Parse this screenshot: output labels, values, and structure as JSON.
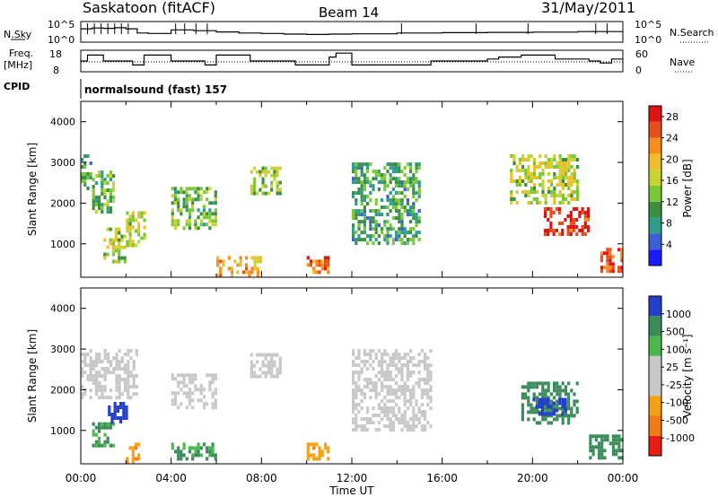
{
  "header": {
    "station": "Saskatoon (fitACF)",
    "beam": "Beam 14",
    "date": "31/May/2011"
  },
  "strips": {
    "nsky_label": "N.Sky",
    "nsky_tick_hi": "10^5",
    "nsky_tick_lo": "10^0",
    "nsearch_label": "N.Search",
    "nsearch_tick_hi": "10^5",
    "nsearch_tick_lo": "10^0",
    "freq_label_1": "Freq.",
    "freq_label_2": "[MHz]",
    "freq_tick_hi": "18",
    "freq_tick_lo": "8",
    "nave_label": "Nave",
    "nave_tick_hi": "60",
    "nave_tick_lo": "0",
    "cpid_label": "CPID",
    "cpid_value": "normalsound (fast) 157"
  },
  "chart_data": [
    {
      "type": "line",
      "panel": "nsky",
      "x_unit": "hours UT",
      "xlim": [
        0,
        24
      ],
      "y_scale": "log",
      "ylim": [
        1,
        100000
      ],
      "x": [
        0,
        0.5,
        1,
        1.5,
        2,
        2.5,
        3,
        4,
        5,
        6,
        7,
        8,
        9,
        10,
        11,
        12,
        14,
        16,
        18,
        20,
        22,
        24
      ],
      "values": [
        3000,
        5000,
        4000,
        6000,
        3000,
        200,
        150,
        1500,
        900,
        400,
        200,
        150,
        100,
        80,
        100,
        120,
        200,
        250,
        300,
        350,
        500,
        600
      ]
    },
    {
      "type": "line",
      "panel": "frequency",
      "x_unit": "hours UT",
      "ylabel": "Freq. [MHz]",
      "xlim": [
        0,
        24
      ],
      "ylim": [
        8,
        18
      ],
      "x": [
        0,
        0.3,
        1,
        2,
        2.3,
        2.8,
        4,
        5,
        5.5,
        6,
        7.5,
        9,
        9.5,
        10.5,
        11,
        11.3,
        12,
        15,
        15.5,
        16,
        18,
        18.5,
        19.5,
        21,
        22.5,
        23,
        23.5,
        24
      ],
      "values": [
        13,
        16,
        13,
        13,
        11,
        16,
        13,
        13,
        11,
        16,
        13,
        13,
        11,
        11,
        15,
        17,
        11,
        11,
        13,
        13,
        14,
        15,
        16,
        14,
        13,
        12,
        14,
        14
      ]
    },
    {
      "type": "heatmap",
      "panel": "power",
      "xlabel": "Time UT",
      "ylabel": "Slant Range [km]",
      "xlim": [
        0,
        24
      ],
      "ylim": [
        180,
        4500
      ],
      "x_ticks": [
        "00:00",
        "04:00",
        "08:00",
        "12:00",
        "16:00",
        "20:00",
        "00:00"
      ],
      "y_ticks": [
        1000,
        2000,
        3000,
        4000
      ],
      "colorbar": {
        "label": "Power [dB]",
        "ticks": [
          4,
          8,
          12,
          16,
          20,
          24,
          28
        ],
        "colors": [
          "#1a1aff",
          "#3c5fd6",
          "#2f9c8c",
          "#3a9040",
          "#7bc837",
          "#c8d232",
          "#f0be28",
          "#f58c1e",
          "#e6501e",
          "#dc1414"
        ]
      },
      "regions": [
        {
          "t": [
            0.0,
            0.5
          ],
          "r": [
            2400,
            3200
          ],
          "value": 10
        },
        {
          "t": [
            0.5,
            1.5
          ],
          "r": [
            1800,
            2800
          ],
          "value": 12
        },
        {
          "t": [
            1.0,
            2.0
          ],
          "r": [
            600,
            1400
          ],
          "value": 14
        },
        {
          "t": [
            2.0,
            2.8
          ],
          "r": [
            1000,
            1800
          ],
          "value": 16
        },
        {
          "t": [
            4.0,
            6.0
          ],
          "r": [
            1400,
            2400
          ],
          "value": 12
        },
        {
          "t": [
            6.0,
            8.0
          ],
          "r": [
            200,
            700
          ],
          "value": 20
        },
        {
          "t": [
            7.5,
            8.8
          ],
          "r": [
            2200,
            2900
          ],
          "value": 14
        },
        {
          "t": [
            10.0,
            11.0
          ],
          "r": [
            300,
            700
          ],
          "value": 24
        },
        {
          "t": [
            12.0,
            15.0
          ],
          "r": [
            1000,
            3000
          ],
          "value": 10
        },
        {
          "t": [
            19.0,
            22.0
          ],
          "r": [
            2000,
            3200
          ],
          "value": 16
        },
        {
          "t": [
            20.5,
            22.5
          ],
          "r": [
            1200,
            1900
          ],
          "value": 28
        },
        {
          "t": [
            23.0,
            24.0
          ],
          "r": [
            300,
            900
          ],
          "value": 26
        }
      ]
    },
    {
      "type": "heatmap",
      "panel": "velocity",
      "xlabel": "Time UT",
      "ylabel": "Slant Range [km]",
      "xlim": [
        0,
        24
      ],
      "ylim": [
        180,
        4500
      ],
      "x_ticks": [
        "00:00",
        "04:00",
        "08:00",
        "12:00",
        "16:00",
        "20:00",
        "00:00"
      ],
      "y_ticks": [
        1000,
        2000,
        3000,
        4000
      ],
      "colorbar": {
        "label": "Velocity [m s⁻¹]",
        "ticks": [
          1000,
          500,
          100,
          25,
          -25,
          -100,
          -500,
          -1000
        ],
        "colors": [
          "#2340c8",
          "#3a8c5a",
          "#4bb84b",
          "#c8c8c8",
          "#c8c8c8",
          "#f5a014",
          "#f07a14",
          "#e61e14"
        ]
      },
      "regions": [
        {
          "t": [
            0.0,
            2.5
          ],
          "r": [
            1800,
            3000
          ],
          "value": 0
        },
        {
          "t": [
            0.5,
            1.5
          ],
          "r": [
            600,
            1200
          ],
          "value": 100
        },
        {
          "t": [
            1.2,
            2.0
          ],
          "r": [
            1200,
            1700
          ],
          "value": 800
        },
        {
          "t": [
            2.0,
            2.6
          ],
          "r": [
            250,
            700
          ],
          "value": -400
        },
        {
          "t": [
            4.0,
            6.0
          ],
          "r": [
            1600,
            2400
          ],
          "value": 0
        },
        {
          "t": [
            4.0,
            6.0
          ],
          "r": [
            300,
            700
          ],
          "value": 100
        },
        {
          "t": [
            7.5,
            8.8
          ],
          "r": [
            2300,
            2900
          ],
          "value": 0
        },
        {
          "t": [
            10.0,
            11.0
          ],
          "r": [
            300,
            700
          ],
          "value": -400
        },
        {
          "t": [
            12.0,
            15.5
          ],
          "r": [
            1000,
            3000
          ],
          "value": 0
        },
        {
          "t": [
            19.5,
            22.0
          ],
          "r": [
            1200,
            2200
          ],
          "value": 300
        },
        {
          "t": [
            20.0,
            21.5
          ],
          "r": [
            1400,
            1800
          ],
          "value": 900
        },
        {
          "t": [
            22.5,
            24.0
          ],
          "r": [
            300,
            900
          ],
          "value": 300
        }
      ]
    }
  ]
}
